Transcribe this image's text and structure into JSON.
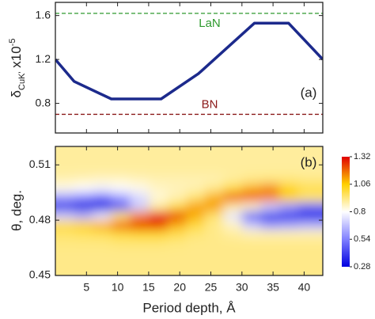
{
  "chart_data": [
    {
      "type": "line",
      "ylabel": {
        "symbol": "δ",
        "subscript": "CuK'",
        "factor": " x10",
        "exponent": "-5"
      },
      "x": [
        0,
        3,
        9,
        17,
        23,
        32,
        37.5,
        43
      ],
      "values": [
        1.2,
        1.0,
        0.84,
        0.84,
        1.07,
        1.53,
        1.53,
        1.2
      ],
      "color": "#1c2a8c",
      "xlim": [
        0,
        43
      ],
      "xticks": [
        5,
        10,
        15,
        20,
        25,
        30,
        35,
        40
      ],
      "ylim": [
        0.53,
        1.72
      ],
      "yticks": [
        0.8,
        1.2,
        1.6
      ],
      "hlines": [
        {
          "name": "LaN",
          "value": 1.62,
          "color": "#2e9a2e"
        },
        {
          "name": "BN",
          "value": 0.7,
          "color": "#8b1a1a"
        }
      ],
      "annotation": "(a)"
    },
    {
      "type": "heatmap",
      "ylabel": "θ, deg.",
      "xlabel": "Period depth, Å",
      "annotation": "(b)",
      "xlim": [
        0,
        43
      ],
      "xticks": [
        5,
        10,
        15,
        20,
        25,
        30,
        35,
        40
      ],
      "ylim": [
        0.45,
        0.52
      ],
      "yticks": [
        0.45,
        0.48,
        0.51
      ],
      "x": [
        1.5,
        4.5,
        7.5,
        10.5,
        13.5,
        16.5,
        19.5,
        22.5,
        25.5,
        28.5,
        31.5,
        34.5,
        37.5,
        40.5
      ],
      "y": [
        0.4525,
        0.4575,
        0.4625,
        0.4675,
        0.4725,
        0.4775,
        0.4825,
        0.4875,
        0.4925,
        0.4975,
        0.5025,
        0.5075,
        0.5125,
        0.5175
      ],
      "z": [
        [
          0.92,
          0.92,
          0.92,
          0.92,
          0.92,
          0.92,
          0.92,
          0.92,
          0.92,
          0.92,
          0.92,
          0.92,
          0.92,
          0.92
        ],
        [
          0.92,
          0.92,
          0.92,
          0.92,
          0.92,
          0.92,
          0.92,
          0.92,
          0.92,
          0.92,
          0.92,
          0.92,
          0.92,
          0.92
        ],
        [
          0.92,
          0.92,
          0.92,
          0.92,
          0.92,
          0.92,
          0.92,
          0.92,
          0.92,
          0.92,
          0.92,
          0.92,
          0.92,
          0.92
        ],
        [
          0.93,
          0.93,
          0.93,
          0.94,
          0.94,
          0.94,
          0.93,
          0.92,
          0.92,
          0.92,
          0.92,
          0.92,
          0.92,
          0.92
        ],
        [
          0.95,
          0.96,
          0.97,
          1.0,
          1.02,
          1.02,
          0.98,
          0.94,
          0.92,
          0.9,
          0.88,
          0.88,
          0.88,
          0.88
        ],
        [
          1.0,
          1.05,
          1.1,
          1.2,
          1.25,
          1.25,
          1.1,
          1.0,
          0.92,
          0.86,
          0.7,
          0.6,
          0.62,
          0.65
        ],
        [
          0.7,
          0.65,
          0.75,
          0.95,
          1.15,
          1.28,
          1.25,
          1.1,
          0.95,
          0.75,
          0.45,
          0.35,
          0.35,
          0.32
        ],
        [
          0.35,
          0.28,
          0.3,
          0.45,
          0.7,
          0.9,
          1.0,
          1.12,
          1.12,
          0.9,
          0.85,
          0.7,
          0.6,
          0.5
        ],
        [
          0.6,
          0.55,
          0.5,
          0.6,
          0.72,
          0.84,
          0.88,
          0.95,
          1.1,
          1.2,
          1.2,
          1.15,
          1.05,
          0.95
        ],
        [
          0.82,
          0.8,
          0.78,
          0.8,
          0.82,
          0.86,
          0.87,
          0.88,
          0.92,
          1.0,
          1.1,
          1.15,
          1.05,
          0.98
        ],
        [
          0.88,
          0.87,
          0.86,
          0.86,
          0.87,
          0.88,
          0.88,
          0.88,
          0.88,
          0.9,
          0.92,
          0.93,
          0.93,
          0.92
        ],
        [
          0.9,
          0.9,
          0.9,
          0.9,
          0.9,
          0.9,
          0.9,
          0.9,
          0.9,
          0.9,
          0.9,
          0.9,
          0.9,
          0.9
        ],
        [
          0.9,
          0.9,
          0.9,
          0.9,
          0.9,
          0.9,
          0.9,
          0.9,
          0.9,
          0.9,
          0.9,
          0.9,
          0.9,
          0.9
        ],
        [
          0.9,
          0.9,
          0.9,
          0.9,
          0.9,
          0.9,
          0.9,
          0.9,
          0.9,
          0.9,
          0.9,
          0.9,
          0.9,
          0.9
        ]
      ],
      "zlim": [
        0.28,
        1.32
      ],
      "zticks": [
        0.28,
        0.54,
        0.8,
        1.06,
        1.32
      ],
      "colors": [
        "#0000e0",
        "#8080ff",
        "#ffffff",
        "#ffd000",
        "#e00000"
      ]
    }
  ]
}
